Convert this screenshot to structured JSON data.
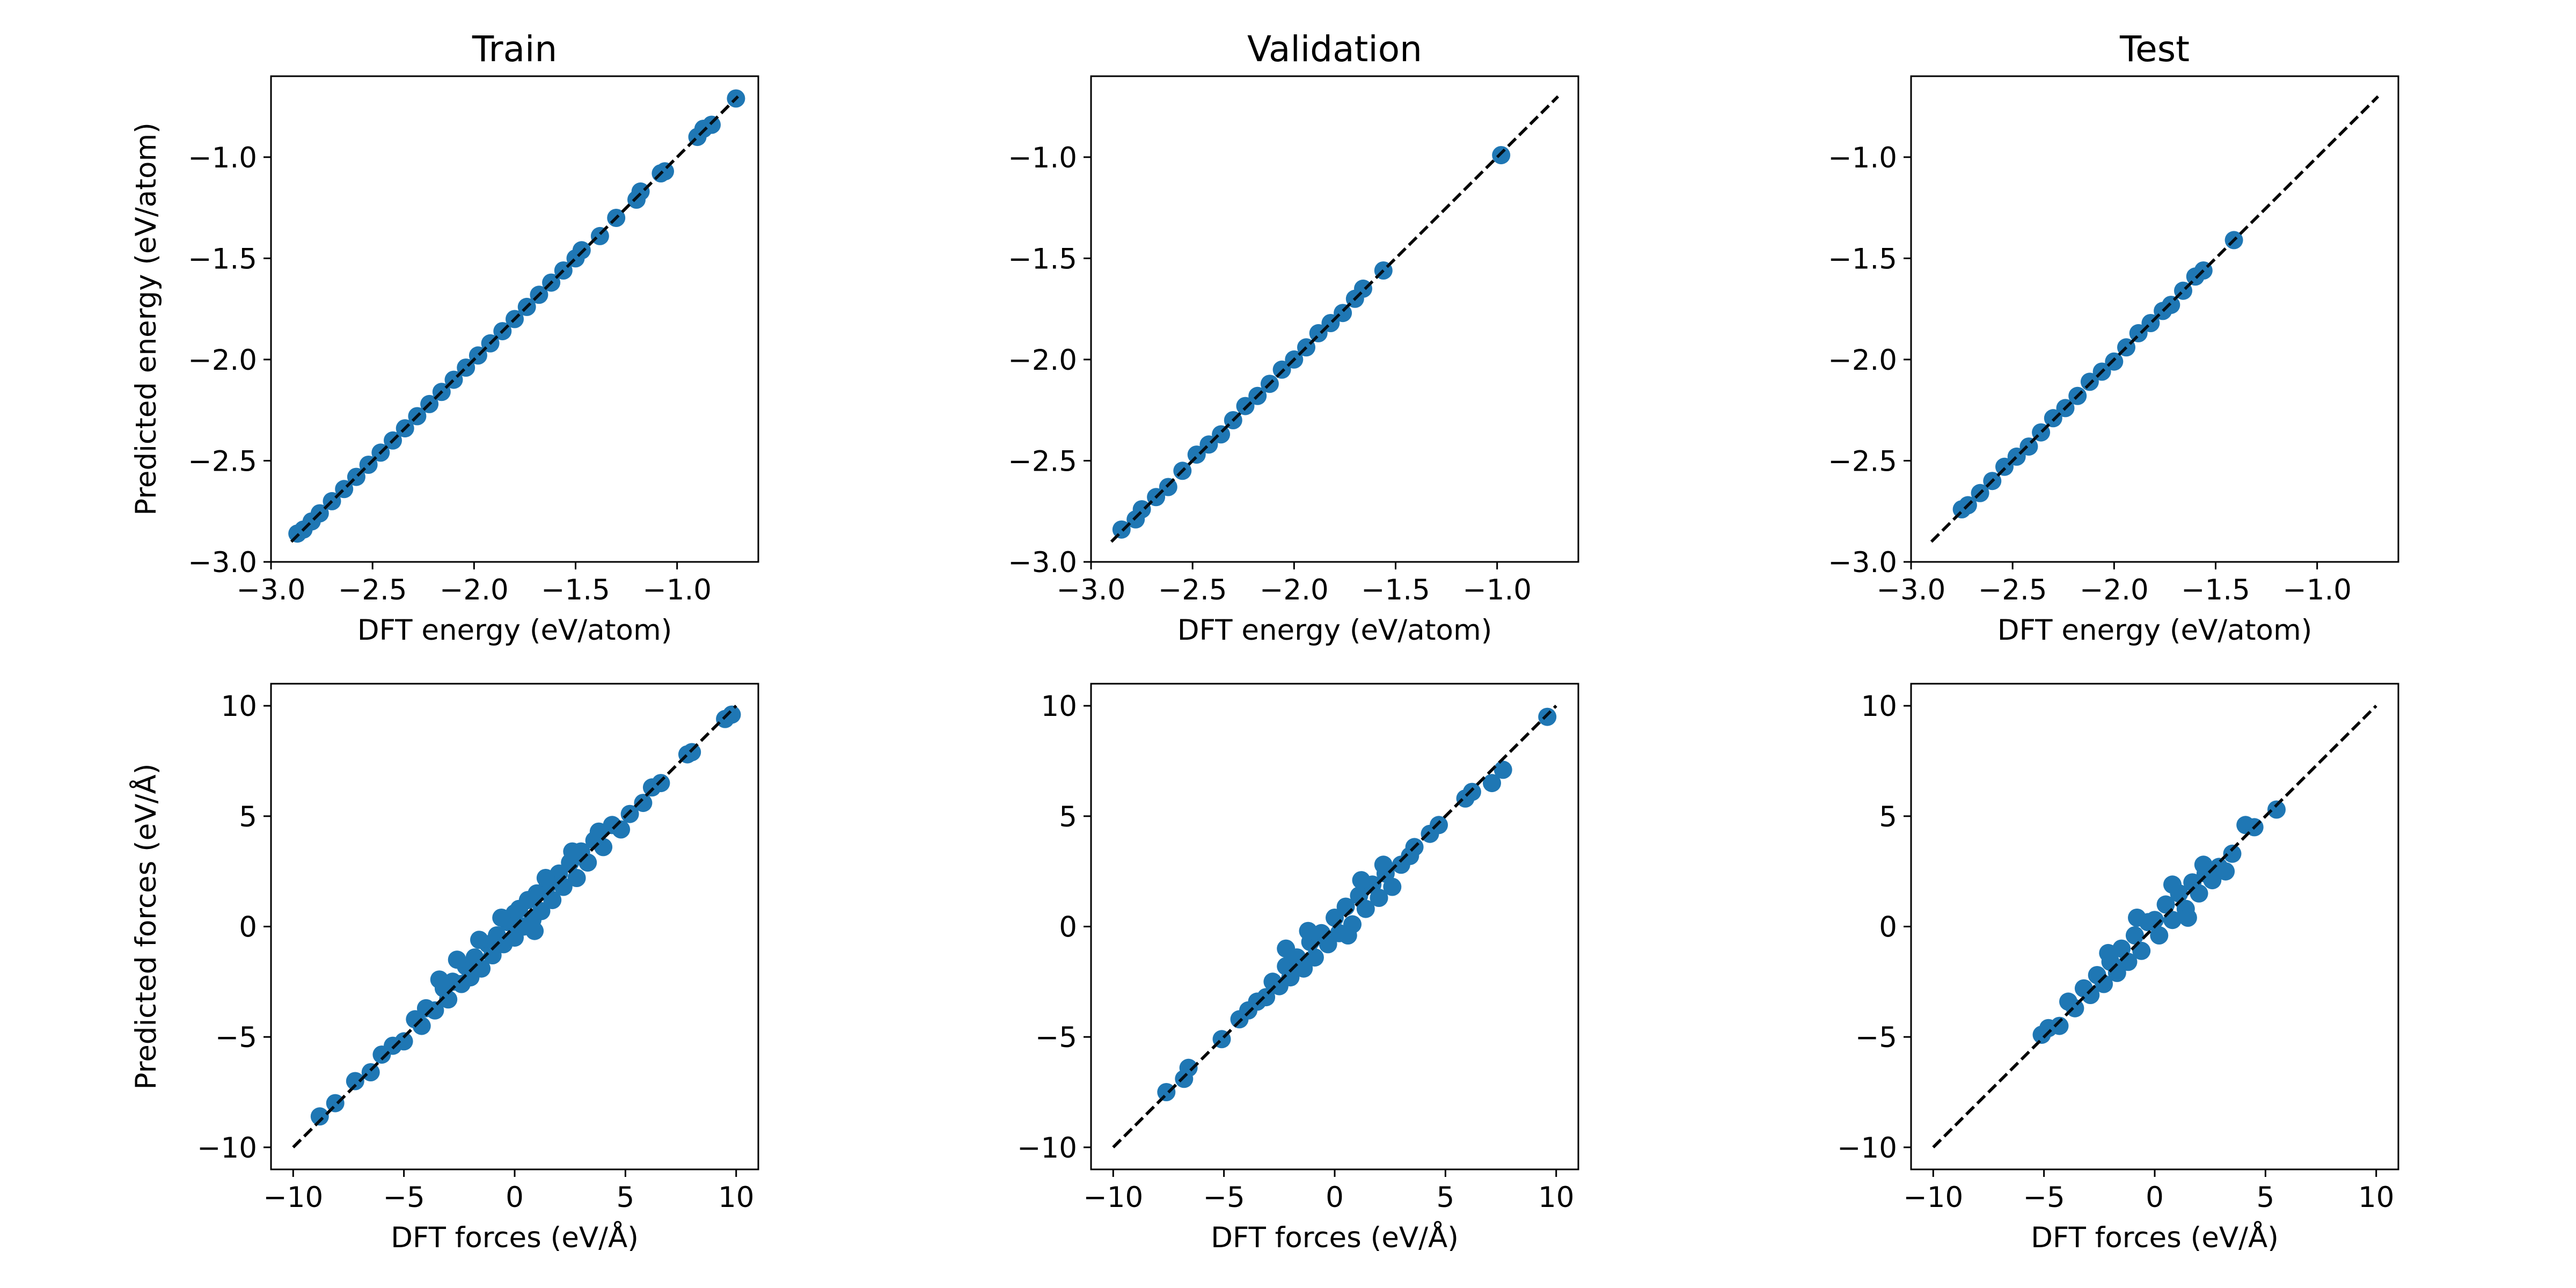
{
  "figure": {
    "background": "#ffffff"
  },
  "style": {
    "point_color": "#1f77b4",
    "line_color": "#000000"
  },
  "chart_data": [
    {
      "type": "scatter",
      "id": "train-energy",
      "row": 0,
      "col": 0,
      "title": "Train",
      "xlabel": "DFT energy (eV/atom)",
      "ylabel": "Predicted energy (eV/atom)",
      "xlim": [
        -3.0,
        -0.6
      ],
      "ylim": [
        -3.0,
        -0.6
      ],
      "xticks": [
        -3.0,
        -2.5,
        -2.0,
        -1.5,
        -1.0
      ],
      "yticks": [
        -3.0,
        -2.5,
        -2.0,
        -1.5,
        -1.0
      ],
      "xticklabels": [
        "−3.0",
        "−2.5",
        "−2.0",
        "−1.5",
        "−1.0"
      ],
      "yticklabels": [
        "−3.0",
        "−2.5",
        "−2.0",
        "−1.5",
        "−1.0"
      ],
      "diagonal": [
        -2.9,
        -0.7
      ],
      "x": [
        -2.87,
        -2.84,
        -2.8,
        -2.76,
        -2.7,
        -2.64,
        -2.58,
        -2.52,
        -2.46,
        -2.4,
        -2.34,
        -2.28,
        -2.22,
        -2.16,
        -2.1,
        -2.04,
        -1.98,
        -1.92,
        -1.86,
        -1.8,
        -1.74,
        -1.68,
        -1.62,
        -1.56,
        -1.5,
        -1.47,
        -1.38,
        -1.3,
        -1.2,
        -1.18,
        -1.08,
        -1.06,
        -0.9,
        -0.87,
        -0.83,
        -0.71
      ],
      "y": [
        -2.86,
        -2.84,
        -2.8,
        -2.76,
        -2.7,
        -2.64,
        -2.58,
        -2.52,
        -2.46,
        -2.4,
        -2.34,
        -2.28,
        -2.22,
        -2.16,
        -2.1,
        -2.04,
        -1.98,
        -1.92,
        -1.86,
        -1.8,
        -1.74,
        -1.68,
        -1.62,
        -1.56,
        -1.5,
        -1.46,
        -1.39,
        -1.3,
        -1.21,
        -1.17,
        -1.08,
        -1.07,
        -0.9,
        -0.86,
        -0.84,
        -0.71
      ]
    },
    {
      "type": "scatter",
      "id": "validation-energy",
      "row": 0,
      "col": 1,
      "title": "Validation",
      "xlabel": "DFT energy (eV/atom)",
      "ylabel": "",
      "xlim": [
        -3.0,
        -0.6
      ],
      "ylim": [
        -3.0,
        -0.6
      ],
      "xticks": [
        -3.0,
        -2.5,
        -2.0,
        -1.5,
        -1.0
      ],
      "yticks": [
        -3.0,
        -2.5,
        -2.0,
        -1.5,
        -1.0
      ],
      "xticklabels": [
        "−3.0",
        "−2.5",
        "−2.0",
        "−1.5",
        "−1.0"
      ],
      "yticklabels": [
        "−3.0",
        "−2.5",
        "−2.0",
        "−1.5",
        "−1.0"
      ],
      "diagonal": [
        -2.9,
        -0.7
      ],
      "x": [
        -2.85,
        -2.78,
        -2.75,
        -2.68,
        -2.62,
        -2.55,
        -2.48,
        -2.42,
        -2.36,
        -2.3,
        -2.24,
        -2.18,
        -2.12,
        -2.06,
        -2.0,
        -1.94,
        -1.88,
        -1.82,
        -1.76,
        -1.7,
        -1.66,
        -1.56,
        -0.98
      ],
      "y": [
        -2.84,
        -2.79,
        -2.74,
        -2.68,
        -2.63,
        -2.55,
        -2.47,
        -2.42,
        -2.37,
        -2.3,
        -2.23,
        -2.18,
        -2.12,
        -2.05,
        -2.0,
        -1.94,
        -1.87,
        -1.82,
        -1.77,
        -1.7,
        -1.65,
        -1.56,
        -0.99
      ]
    },
    {
      "type": "scatter",
      "id": "test-energy",
      "row": 0,
      "col": 2,
      "title": "Test",
      "xlabel": "DFT energy (eV/atom)",
      "ylabel": "",
      "xlim": [
        -3.0,
        -0.6
      ],
      "ylim": [
        -3.0,
        -0.6
      ],
      "xticks": [
        -3.0,
        -2.5,
        -2.0,
        -1.5,
        -1.0
      ],
      "yticks": [
        -3.0,
        -2.5,
        -2.0,
        -1.5,
        -1.0
      ],
      "xticklabels": [
        "−3.0",
        "−2.5",
        "−2.0",
        "−1.5",
        "−1.0"
      ],
      "yticklabels": [
        "−3.0",
        "−2.5",
        "−2.0",
        "−1.5",
        "−1.0"
      ],
      "diagonal": [
        -2.9,
        -0.7
      ],
      "x": [
        -2.75,
        -2.72,
        -2.66,
        -2.6,
        -2.54,
        -2.48,
        -2.42,
        -2.36,
        -2.3,
        -2.24,
        -2.18,
        -2.12,
        -2.06,
        -2.0,
        -1.94,
        -1.88,
        -1.82,
        -1.76,
        -1.72,
        -1.66,
        -1.6,
        -1.56,
        -1.41
      ],
      "y": [
        -2.74,
        -2.72,
        -2.66,
        -2.6,
        -2.53,
        -2.48,
        -2.43,
        -2.36,
        -2.29,
        -2.24,
        -2.18,
        -2.11,
        -2.06,
        -2.01,
        -1.94,
        -1.87,
        -1.82,
        -1.76,
        -1.73,
        -1.66,
        -1.59,
        -1.56,
        -1.41
      ]
    },
    {
      "type": "scatter",
      "id": "train-forces",
      "row": 1,
      "col": 0,
      "title": "",
      "xlabel": "DFT forces (eV/Å)",
      "ylabel": "Predicted forces (eV/Å)",
      "xlim": [
        -11,
        11
      ],
      "ylim": [
        -11,
        11
      ],
      "xticks": [
        -10,
        -5,
        0,
        5,
        10
      ],
      "yticks": [
        -10,
        -5,
        0,
        5,
        10
      ],
      "xticklabels": [
        "−10",
        "−5",
        "0",
        "5",
        "10"
      ],
      "yticklabels": [
        "−10",
        "−5",
        "0",
        "5",
        "10"
      ],
      "diagonal": [
        -10,
        10
      ],
      "x": [
        -8.8,
        -8.1,
        -7.2,
        -6.5,
        -6.0,
        -5.5,
        -5.0,
        -4.5,
        -4.2,
        -4.0,
        -3.6,
        -3.2,
        -3.0,
        -2.8,
        -2.4,
        -2.2,
        -2.0,
        -1.8,
        -1.5,
        -1.2,
        -1.0,
        -0.8,
        -0.5,
        -0.3,
        0.0,
        0.0,
        0.2,
        0.4,
        0.6,
        0.8,
        1.0,
        1.2,
        1.5,
        1.7,
        2.0,
        2.2,
        2.5,
        2.8,
        3.0,
        3.3,
        3.6,
        4.0,
        4.4,
        4.8,
        5.2,
        5.8,
        6.2,
        6.6,
        7.8,
        8.0,
        9.5,
        9.8,
        -0.6,
        -1.6,
        1.4,
        2.6,
        -2.6,
        0.9,
        -3.4,
        3.8
      ],
      "y": [
        -8.6,
        -8.0,
        -7.0,
        -6.6,
        -5.8,
        -5.4,
        -5.2,
        -4.2,
        -4.5,
        -3.7,
        -3.8,
        -2.8,
        -3.3,
        -2.5,
        -2.6,
        -1.8,
        -2.3,
        -1.4,
        -1.9,
        -0.8,
        -1.3,
        -0.4,
        -0.8,
        0.2,
        0.6,
        -0.5,
        0.8,
        0.0,
        1.2,
        0.3,
        1.5,
        0.7,
        1.9,
        1.2,
        2.4,
        1.8,
        2.9,
        2.2,
        3.4,
        2.9,
        3.9,
        3.6,
        4.6,
        4.4,
        5.1,
        5.6,
        6.3,
        6.5,
        7.8,
        7.9,
        9.4,
        9.6,
        0.4,
        -0.6,
        2.2,
        3.4,
        -1.5,
        -0.2,
        -2.4,
        4.3
      ]
    },
    {
      "type": "scatter",
      "id": "validation-forces",
      "row": 1,
      "col": 1,
      "title": "",
      "xlabel": "DFT forces (eV/Å)",
      "ylabel": "",
      "xlim": [
        -11,
        11
      ],
      "ylim": [
        -11,
        11
      ],
      "xticks": [
        -10,
        -5,
        0,
        5,
        10
      ],
      "yticks": [
        -10,
        -5,
        0,
        5,
        10
      ],
      "xticklabels": [
        "−10",
        "−5",
        "0",
        "5",
        "10"
      ],
      "yticklabels": [
        "−10",
        "−5",
        "0",
        "5",
        "10"
      ],
      "diagonal": [
        -10,
        10
      ],
      "x": [
        -7.6,
        -6.8,
        -6.6,
        -5.1,
        -4.3,
        -3.9,
        -3.5,
        -3.1,
        -2.8,
        -2.5,
        -2.2,
        -2.0,
        -1.7,
        -1.4,
        -1.1,
        -0.9,
        -0.6,
        -0.3,
        0.0,
        0.2,
        0.5,
        0.8,
        1.1,
        1.4,
        1.7,
        2.0,
        2.3,
        2.6,
        3.0,
        3.4,
        3.6,
        4.3,
        4.7,
        5.9,
        6.2,
        7.1,
        7.6,
        9.6,
        -1.2,
        1.2,
        0.6,
        -2.2,
        2.2
      ],
      "y": [
        -7.5,
        -6.9,
        -6.4,
        -5.1,
        -4.2,
        -3.8,
        -3.4,
        -3.2,
        -2.5,
        -2.7,
        -1.8,
        -2.3,
        -1.4,
        -1.9,
        -0.7,
        -1.4,
        -0.3,
        -0.8,
        0.4,
        -0.3,
        0.9,
        0.1,
        1.4,
        0.8,
        1.9,
        1.3,
        2.4,
        1.8,
        2.8,
        3.2,
        3.6,
        4.2,
        4.6,
        5.8,
        6.1,
        6.5,
        7.1,
        9.5,
        -0.2,
        2.1,
        -0.4,
        -1.0,
        2.8
      ]
    },
    {
      "type": "scatter",
      "id": "test-forces",
      "row": 1,
      "col": 2,
      "title": "",
      "xlabel": "DFT forces (eV/Å)",
      "ylabel": "",
      "xlim": [
        -11,
        11
      ],
      "ylim": [
        -11,
        11
      ],
      "xticks": [
        -10,
        -5,
        0,
        5,
        10
      ],
      "yticks": [
        -10,
        -5,
        0,
        5,
        10
      ],
      "xticklabels": [
        "−10",
        "−5",
        "0",
        "5",
        "10"
      ],
      "yticklabels": [
        "−10",
        "−5",
        "0",
        "5",
        "10"
      ],
      "diagonal": [
        -10,
        10
      ],
      "x": [
        -5.1,
        -4.8,
        -4.3,
        -3.9,
        -3.6,
        -3.2,
        -2.9,
        -2.6,
        -2.3,
        -2.0,
        -1.7,
        -1.5,
        -1.2,
        -0.9,
        -0.6,
        -0.3,
        0.0,
        0.2,
        0.5,
        0.8,
        1.1,
        1.4,
        1.7,
        2.0,
        2.3,
        2.6,
        2.9,
        3.2,
        3.5,
        4.1,
        4.5,
        5.5,
        -0.8,
        0.8,
        1.5,
        -2.1,
        2.2
      ],
      "y": [
        -4.9,
        -4.6,
        -4.5,
        -3.4,
        -3.7,
        -2.8,
        -3.1,
        -2.2,
        -2.6,
        -1.6,
        -2.1,
        -1.0,
        -1.6,
        -0.4,
        -1.1,
        0.2,
        0.3,
        -0.4,
        1.0,
        0.3,
        1.5,
        0.8,
        2.0,
        1.5,
        2.4,
        2.1,
        2.7,
        2.5,
        3.3,
        4.6,
        4.5,
        5.3,
        0.4,
        1.9,
        0.4,
        -1.2,
        2.8
      ]
    }
  ]
}
